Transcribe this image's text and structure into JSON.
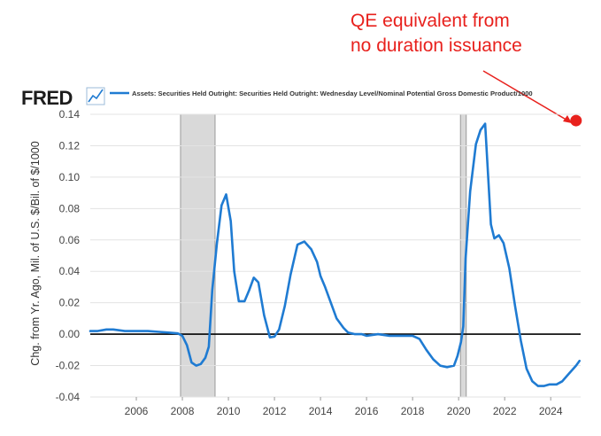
{
  "annotation": {
    "line1": "QE equivalent from",
    "line2": "no duration issuance",
    "color": "#e8211d"
  },
  "brand": {
    "logo_text": "FRED",
    "logo_icon": "line-chart-icon"
  },
  "colors": {
    "series": "#1f7bd2",
    "recession": "#d9d9d9",
    "zero_line": "#000000",
    "grid": "#e3e3e3"
  },
  "chart_data": {
    "type": "line",
    "title": "",
    "legend": "Assets: Securities Held Outright: Securities Held Outright: Wednesday Level/Nominal Potential Gross Domestic Product/1000",
    "legend_placement": "top",
    "xlabel": "",
    "ylabel": "Chg. from Yr. Ago, Mil. of U.S. $/Bil. of $/1000",
    "xlim": [
      2004.0,
      2025.3
    ],
    "ylim": [
      -0.04,
      0.14
    ],
    "yticks": [
      -0.04,
      -0.02,
      0.0,
      0.02,
      0.04,
      0.06,
      0.08,
      0.1,
      0.12,
      0.14
    ],
    "ytick_labels": [
      "-0.04",
      "-0.02",
      "0.00",
      "0.02",
      "0.04",
      "0.06",
      "0.08",
      "0.10",
      "0.12",
      "0.14"
    ],
    "xticks": [
      2006,
      2008,
      2010,
      2012,
      2014,
      2016,
      2018,
      2020,
      2022,
      2024
    ],
    "xtick_labels": [
      "2006",
      "2008",
      "2010",
      "2012",
      "2014",
      "2016",
      "2018",
      "2020",
      "2022",
      "2024"
    ],
    "grid": true,
    "recessions": [
      {
        "start": 2007.92,
        "end": 2009.42
      },
      {
        "start": 2020.08,
        "end": 2020.33
      }
    ],
    "highlight_point": {
      "x": 2025.1,
      "y": 0.136
    },
    "series": [
      {
        "name": "Assets: Securities Held Outright / Nominal Potential GDP",
        "x": [
          2004.0,
          2004.3,
          2004.7,
          2005.0,
          2005.5,
          2006.0,
          2006.5,
          2007.0,
          2007.4,
          2007.8,
          2008.0,
          2008.2,
          2008.4,
          2008.6,
          2008.8,
          2009.0,
          2009.15,
          2009.3,
          2009.5,
          2009.7,
          2009.9,
          2010.1,
          2010.25,
          2010.45,
          2010.7,
          2010.9,
          2011.1,
          2011.3,
          2011.55,
          2011.8,
          2012.0,
          2012.2,
          2012.45,
          2012.7,
          2013.0,
          2013.3,
          2013.6,
          2013.85,
          2014.0,
          2014.2,
          2014.45,
          2014.7,
          2015.0,
          2015.2,
          2015.5,
          2015.8,
          2016.0,
          2016.5,
          2017.0,
          2017.5,
          2018.0,
          2018.3,
          2018.6,
          2018.9,
          2019.2,
          2019.5,
          2019.8,
          2019.95,
          2020.1,
          2020.2,
          2020.3,
          2020.5,
          2020.75,
          2020.95,
          2021.05,
          2021.15,
          2021.4,
          2021.55,
          2021.75,
          2021.95,
          2022.2,
          2022.45,
          2022.7,
          2022.95,
          2023.2,
          2023.45,
          2023.7,
          2023.95,
          2024.25,
          2024.5,
          2024.8,
          2025.1,
          2025.25
        ],
        "values": [
          0.002,
          0.002,
          0.003,
          0.003,
          0.002,
          0.002,
          0.002,
          0.0015,
          0.001,
          0.0005,
          -0.001,
          -0.007,
          -0.018,
          -0.02,
          -0.019,
          -0.015,
          -0.008,
          0.028,
          0.058,
          0.082,
          0.089,
          0.072,
          0.04,
          0.021,
          0.021,
          0.028,
          0.036,
          0.033,
          0.012,
          -0.002,
          -0.0015,
          0.003,
          0.018,
          0.038,
          0.057,
          0.059,
          0.054,
          0.046,
          0.037,
          0.03,
          0.02,
          0.01,
          0.004,
          0.001,
          0.0,
          0.0,
          -0.001,
          0.0,
          -0.001,
          -0.001,
          -0.001,
          -0.003,
          -0.01,
          -0.016,
          -0.02,
          -0.021,
          -0.02,
          -0.014,
          -0.005,
          0.005,
          0.048,
          0.091,
          0.121,
          0.13,
          0.132,
          0.134,
          0.07,
          0.061,
          0.063,
          0.058,
          0.042,
          0.018,
          -0.004,
          -0.022,
          -0.03,
          -0.033,
          -0.033,
          -0.032,
          -0.032,
          -0.03,
          -0.025,
          -0.02,
          -0.017
        ]
      }
    ]
  }
}
